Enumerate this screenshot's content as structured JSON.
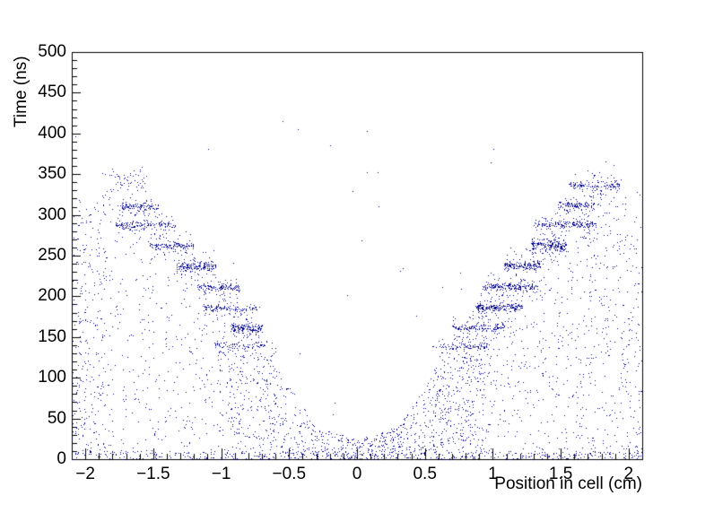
{
  "chart_data": {
    "type": "scatter",
    "title": "",
    "xlabel": "Position in cell (cm)",
    "ylabel": "Time (ns)",
    "xlim": [
      -2.1,
      2.1
    ],
    "ylim": [
      0,
      500
    ],
    "x_ticks": [
      {
        "v": -2,
        "label": "−2"
      },
      {
        "v": -1.5,
        "label": "−1.5"
      },
      {
        "v": -1,
        "label": "−1"
      },
      {
        "v": -0.5,
        "label": "−0.5"
      },
      {
        "v": 0,
        "label": "0"
      },
      {
        "v": 0.5,
        "label": "0.5"
      },
      {
        "v": 1,
        "label": "1"
      },
      {
        "v": 1.5,
        "label": "1.5"
      },
      {
        "v": 2,
        "label": "2"
      }
    ],
    "y_ticks": [
      {
        "v": 0,
        "label": "0"
      },
      {
        "v": 50,
        "label": "50"
      },
      {
        "v": 100,
        "label": "100"
      },
      {
        "v": 150,
        "label": "150"
      },
      {
        "v": 200,
        "label": "200"
      },
      {
        "v": 250,
        "label": "250"
      },
      {
        "v": 300,
        "label": "300"
      },
      {
        "v": 350,
        "label": "350"
      },
      {
        "v": 400,
        "label": "400"
      },
      {
        "v": 450,
        "label": "450"
      },
      {
        "v": 500,
        "label": "500"
      }
    ],
    "x_minor_step": 0.1,
    "y_minor_step": 10,
    "grid": false,
    "legend": null,
    "marker_color": "#00008c",
    "marker_size_px": 1,
    "frame_color": "#000000",
    "seed": 421337,
    "bands": [
      {
        "t": 139,
        "st": 2.2,
        "x1": 0.6,
        "x2": 0.97,
        "n": 70,
        "hn": 26,
        "hs": 9
      },
      {
        "t": 162,
        "st": 2.2,
        "x1": 0.7,
        "x2": 1.08,
        "n": 120,
        "hn": 42,
        "hs": 9
      },
      {
        "t": 187,
        "st": 2.2,
        "x1": 0.88,
        "x2": 1.22,
        "n": 150,
        "hn": 52,
        "hs": 9
      },
      {
        "t": 212,
        "st": 2.2,
        "x1": 0.92,
        "x2": 1.33,
        "n": 160,
        "hn": 56,
        "hs": 9
      },
      {
        "t": 238,
        "st": 2.2,
        "x1": 1.08,
        "x2": 1.35,
        "n": 120,
        "hn": 42,
        "hs": 9
      },
      {
        "t": 263,
        "st": 3.5,
        "x1": 1.28,
        "x2": 1.54,
        "n": 160,
        "hn": 48,
        "hs": 10
      },
      {
        "t": 289,
        "st": 2.2,
        "x1": 1.3,
        "x2": 1.76,
        "n": 140,
        "hn": 50,
        "hs": 9
      },
      {
        "t": 312,
        "st": 2.2,
        "x1": 1.48,
        "x2": 1.75,
        "n": 90,
        "hn": 32,
        "hs": 9
      },
      {
        "t": 337,
        "st": 2.5,
        "x1": 1.56,
        "x2": 1.93,
        "n": 110,
        "hn": 38,
        "hs": 10
      },
      {
        "t": 140,
        "st": 2.2,
        "x1": -1.05,
        "x2": -0.68,
        "n": 60,
        "hn": 22,
        "hs": 9
      },
      {
        "t": 161,
        "st": 2.5,
        "x1": -0.93,
        "x2": -0.7,
        "n": 110,
        "hn": 38,
        "hs": 9
      },
      {
        "t": 186,
        "st": 2.2,
        "x1": -1.14,
        "x2": -0.72,
        "n": 90,
        "hn": 32,
        "hs": 9
      },
      {
        "t": 211,
        "st": 2.2,
        "x1": -1.18,
        "x2": -0.86,
        "n": 100,
        "hn": 36,
        "hs": 9
      },
      {
        "t": 237,
        "st": 2.5,
        "x1": -1.33,
        "x2": -1.04,
        "n": 130,
        "hn": 44,
        "hs": 9
      },
      {
        "t": 262,
        "st": 2.2,
        "x1": -1.53,
        "x2": -1.2,
        "n": 100,
        "hn": 36,
        "hs": 9
      },
      {
        "t": 288,
        "st": 2.2,
        "x1": -1.78,
        "x2": -1.34,
        "n": 120,
        "hn": 42,
        "hs": 9
      },
      {
        "t": 311,
        "st": 2.2,
        "x1": -1.75,
        "x2": -1.46,
        "n": 90,
        "hn": 32,
        "hs": 9
      },
      {
        "t": 340,
        "st": 7.0,
        "x1": -1.82,
        "x2": -1.55,
        "n": 40,
        "hn": 16,
        "hs": 14
      }
    ],
    "envelope": [
      [
        0.0,
        25
      ],
      [
        0.3,
        40
      ],
      [
        0.5,
        90
      ],
      [
        0.7,
        150
      ],
      [
        0.9,
        195
      ],
      [
        1.1,
        235
      ],
      [
        1.3,
        270
      ],
      [
        1.5,
        310
      ],
      [
        1.7,
        350
      ],
      [
        1.9,
        358
      ],
      [
        2.1,
        322
      ]
    ],
    "wedges": [
      {
        "side": "left",
        "x_min": 0.0,
        "x_max": 2.1,
        "n": 950
      },
      {
        "side": "right",
        "x_min": 0.0,
        "x_max": 2.1,
        "n": 1100
      }
    ],
    "rects": [
      {
        "x1": -2.1,
        "x2": -1.85,
        "t1": 0,
        "t2": 310,
        "n": 180
      },
      {
        "x1": 0.55,
        "x2": 0.95,
        "t1": 0,
        "t2": 140,
        "n": 200
      },
      {
        "x1": -0.95,
        "x2": -0.6,
        "t1": 0,
        "t2": 150,
        "n": 150
      },
      {
        "x1": 1.6,
        "x2": 2.1,
        "t1": 0,
        "t2": 280,
        "n": 150
      },
      {
        "x1": -2.1,
        "x2": -0.35,
        "t1": 0,
        "t2": 10,
        "n": 170
      },
      {
        "x1": 0.35,
        "x2": 2.1,
        "t1": 0,
        "t2": 10,
        "n": 170
      },
      {
        "x1": -2.1,
        "x2": 2.1,
        "t1": 0,
        "t2": 420,
        "n": 70
      }
    ]
  }
}
